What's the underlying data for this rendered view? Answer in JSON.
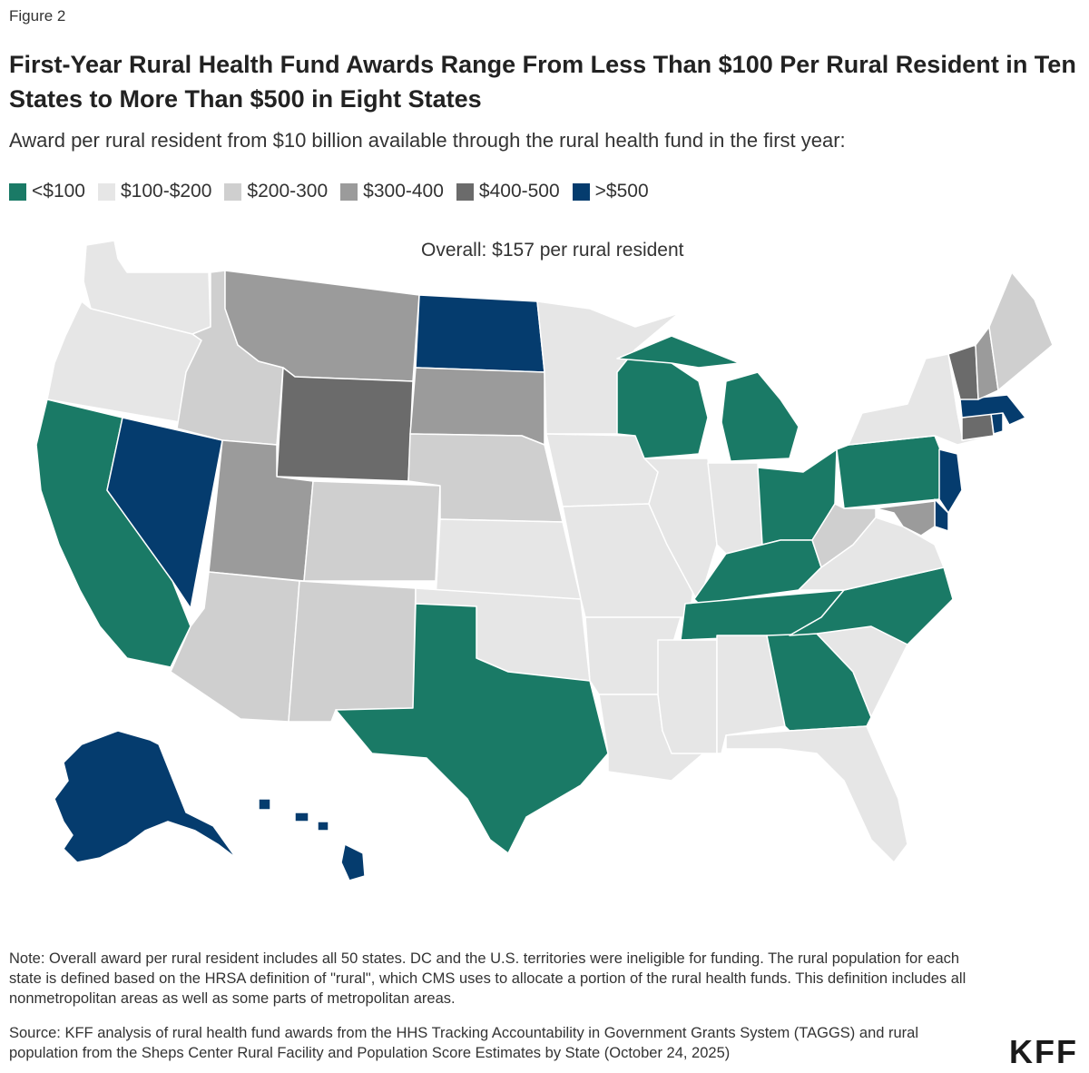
{
  "figure_label": "Figure 2",
  "title": "First-Year Rural Health Fund Awards Range From Less Than $100 Per Rural Resident in Ten States to More Than $500 in Eight States",
  "subtitle": "Award per rural resident from $10 billion available through the rural health fund in the first year:",
  "overall": "Overall: $157 per rural resident",
  "legend": [
    {
      "label": "<$100",
      "color": "#1a7a66"
    },
    {
      "label": "$100-$200",
      "color": "#e6e6e6"
    },
    {
      "label": "$200-300",
      "color": "#cfcfcf"
    },
    {
      "label": "$300-400",
      "color": "#9b9b9b"
    },
    {
      "label": "$400-500",
      "color": "#6b6b6b"
    },
    {
      "label": ">$500",
      "color": "#053c6e"
    }
  ],
  "states": {
    "WA": "$100-$200",
    "OR": "$100-$200",
    "CA": "<$100",
    "NV": ">$500",
    "ID": "$200-300",
    "MT": "$300-400",
    "WY": "$400-500",
    "UT": "$300-400",
    "AZ": "$200-300",
    "CO": "$200-300",
    "NM": "$200-300",
    "ND": ">$500",
    "SD": "$300-400",
    "NE": "$200-300",
    "KS": "$100-$200",
    "OK": "$100-$200",
    "TX": "<$100",
    "MN": "$100-$200",
    "IA": "$100-$200",
    "MO": "$100-$200",
    "AR": "$100-$200",
    "LA": "$100-$200",
    "WI": "<$100",
    "MI": "<$100",
    "IL": "$100-$200",
    "IN": "$100-$200",
    "OH": "<$100",
    "KY": "<$100",
    "TN": "<$100",
    "MS": "$100-$200",
    "AL": "$100-$200",
    "GA": "<$100",
    "FL": "$100-$200",
    "SC": "$100-$200",
    "NC": "<$100",
    "VA": "$100-$200",
    "WV": "$200-300",
    "PA": "<$100",
    "NY": "$100-$200",
    "VT": "$400-500",
    "NH": "$300-400",
    "ME": "$200-300",
    "MA": ">$500",
    "RI": ">$500",
    "CT": "$400-500",
    "NJ": ">$500",
    "DE": ">$500",
    "MD": "$300-400",
    "AK": ">$500",
    "HI": ">$500"
  },
  "note": "Note: Overall award per rural resident includes all 50 states. DC and the U.S. territories were ineligible for funding. The rural population for each state is defined based on the HRSA definition of \"rural\", which CMS uses to allocate a portion of the rural health funds. This definition includes all nonmetropolitan areas as well as some parts of metropolitan areas.",
  "source": "Source: KFF analysis of rural health fund awards from the HHS Tracking Accountability in Government Grants System (TAGGS) and rural population from the Sheps Center Rural Facility and Population Score Estimates by State (October 24, 2025)",
  "logo": "KFF"
}
